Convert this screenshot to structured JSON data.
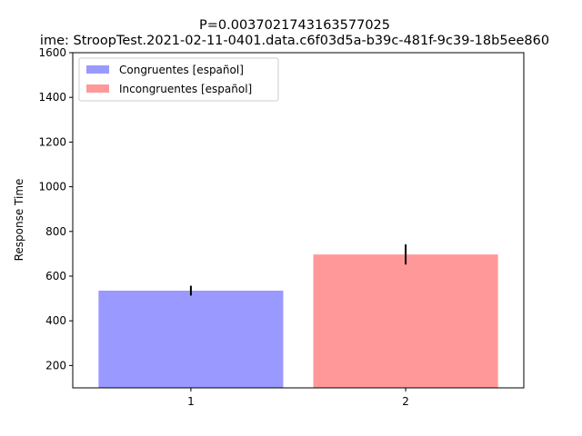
{
  "chart_data": {
    "type": "bar",
    "title_line1": "P=0.0037021743163577025",
    "title_line2": "ime: StroopTest.2021-02-11-0401.data.c6f03d5a-b39c-481f-9c39-18b5ee860",
    "xlabel": "",
    "ylabel": "Response Time",
    "ylim": [
      100,
      1600
    ],
    "yticks": [
      200,
      400,
      600,
      800,
      1000,
      1200,
      1400,
      1600
    ],
    "xlim": [
      0.45,
      2.55
    ],
    "xticks": [
      1,
      2
    ],
    "legend_position": "top-left",
    "grid": false,
    "bars": [
      {
        "x": 1,
        "value": 535,
        "error": 22,
        "color": "#9999ff",
        "legend": "Congruentes [español]"
      },
      {
        "x": 2,
        "value": 697,
        "error": 45,
        "color": "#ff9999",
        "legend": "Incongruentes [español]"
      }
    ],
    "errorbar_color": "#000000"
  }
}
